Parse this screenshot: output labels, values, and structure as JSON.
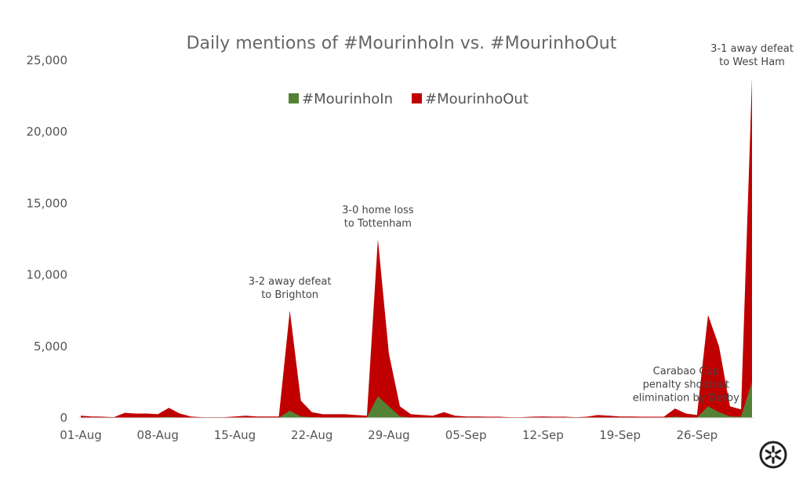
{
  "chart_data": {
    "type": "area",
    "title": "Daily mentions of #MourinhoIn vs. #MourinhoOut",
    "xlabel": "",
    "ylabel": "",
    "ylim": [
      0,
      25000
    ],
    "y_ticks": [
      "0",
      "5,000",
      "10,000",
      "15,000",
      "20,000",
      "25,000"
    ],
    "y_tick_values": [
      0,
      5000,
      10000,
      15000,
      20000,
      25000
    ],
    "x_tick_labels": [
      "01-Aug",
      "08-Aug",
      "15-Aug",
      "22-Aug",
      "29-Aug",
      "05-Sep",
      "12-Sep",
      "19-Sep",
      "26-Sep"
    ],
    "x_tick_dates": [
      "2018-08-01",
      "2018-08-08",
      "2018-08-15",
      "2018-08-22",
      "2018-08-29",
      "2018-09-05",
      "2018-09-12",
      "2018-09-19",
      "2018-09-26"
    ],
    "grid": false,
    "legend_position": "top-center",
    "stacked": false,
    "dates": [
      "2018-08-01",
      "2018-08-02",
      "2018-08-03",
      "2018-08-04",
      "2018-08-05",
      "2018-08-06",
      "2018-08-07",
      "2018-08-08",
      "2018-08-09",
      "2018-08-10",
      "2018-08-11",
      "2018-08-12",
      "2018-08-13",
      "2018-08-14",
      "2018-08-15",
      "2018-08-16",
      "2018-08-17",
      "2018-08-18",
      "2018-08-19",
      "2018-08-20",
      "2018-08-21",
      "2018-08-22",
      "2018-08-23",
      "2018-08-24",
      "2018-08-25",
      "2018-08-26",
      "2018-08-27",
      "2018-08-28",
      "2018-08-29",
      "2018-08-30",
      "2018-08-31",
      "2018-09-01",
      "2018-09-02",
      "2018-09-03",
      "2018-09-04",
      "2018-09-05",
      "2018-09-06",
      "2018-09-07",
      "2018-09-08",
      "2018-09-09",
      "2018-09-10",
      "2018-09-11",
      "2018-09-12",
      "2018-09-13",
      "2018-09-14",
      "2018-09-15",
      "2018-09-16",
      "2018-09-17",
      "2018-09-18",
      "2018-09-19",
      "2018-09-20",
      "2018-09-21",
      "2018-09-22",
      "2018-09-23",
      "2018-09-24",
      "2018-09-25",
      "2018-09-26",
      "2018-09-27",
      "2018-09-28",
      "2018-09-29",
      "2018-09-30",
      "2018-10-01"
    ],
    "series": [
      {
        "name": "#MourinhoOut",
        "color": "#c00000",
        "values": [
          150,
          100,
          80,
          50,
          350,
          300,
          300,
          250,
          700,
          300,
          100,
          50,
          50,
          50,
          100,
          150,
          100,
          100,
          100,
          7500,
          1200,
          400,
          250,
          250,
          250,
          200,
          150,
          12500,
          4500,
          800,
          250,
          200,
          150,
          400,
          150,
          100,
          100,
          80,
          80,
          50,
          50,
          80,
          100,
          80,
          80,
          50,
          80,
          200,
          150,
          100,
          100,
          80,
          80,
          80,
          650,
          300,
          200,
          7200,
          5000,
          800,
          600,
          23800
        ]
      },
      {
        "name": "#MourinhoIn",
        "color": "#548235",
        "values": [
          20,
          10,
          10,
          10,
          30,
          30,
          30,
          30,
          60,
          30,
          10,
          10,
          10,
          10,
          10,
          20,
          10,
          10,
          10,
          500,
          100,
          50,
          30,
          30,
          30,
          20,
          20,
          1500,
          800,
          100,
          30,
          30,
          20,
          50,
          20,
          10,
          10,
          10,
          10,
          10,
          10,
          10,
          10,
          10,
          10,
          10,
          10,
          20,
          20,
          10,
          10,
          10,
          10,
          10,
          80,
          30,
          20,
          800,
          400,
          100,
          80,
          2500
        ]
      }
    ],
    "legend_entries": [
      {
        "label": "#MourinhoIn",
        "color": "#548235"
      },
      {
        "label": "#MourinhoOut",
        "color": "#c00000"
      }
    ],
    "annotations": [
      {
        "lines": [
          "3-2 away defeat",
          "to Brighton"
        ],
        "date": "2018-08-20"
      },
      {
        "lines": [
          "3-0 home loss",
          "to Tottenham"
        ],
        "date": "2018-08-28"
      },
      {
        "lines": [
          "Carabao Cup",
          "penalty shootout",
          "elimination by Derby"
        ],
        "date": "2018-09-25"
      },
      {
        "lines": [
          "3-1 away defeat",
          "to West Ham"
        ],
        "date": "2018-10-01"
      }
    ]
  },
  "logo": {
    "name": "brand-logo",
    "color": "#222222"
  }
}
